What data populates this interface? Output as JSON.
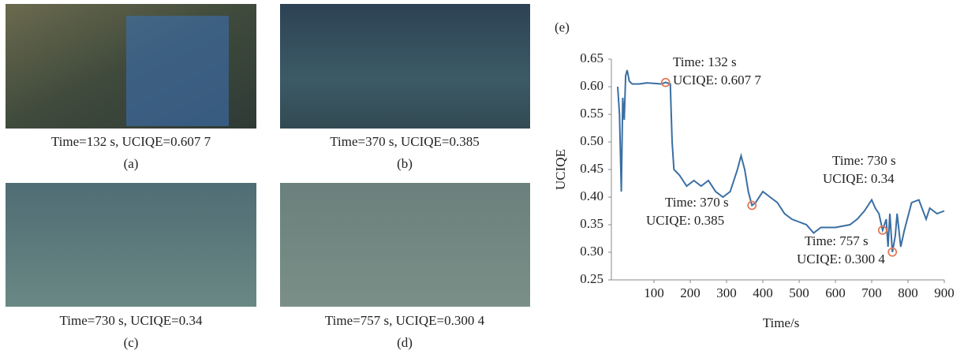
{
  "panels": [
    {
      "caption": "Time=132 s, UCIQE=0.607 7",
      "label": "(a)"
    },
    {
      "caption": "Time=370 s, UCIQE=0.385",
      "label": "(b)"
    },
    {
      "caption": "Time=730 s, UCIQE=0.34",
      "label": "(c)"
    },
    {
      "caption": "Time=757 s, UCIQE=0.300 4",
      "label": "(d)"
    }
  ],
  "chart_data": {
    "type": "line",
    "label": "(e)",
    "xlabel": "Time/s",
    "ylabel": "UCIQE",
    "xlim": [
      0,
      900
    ],
    "ylim": [
      0.25,
      0.65
    ],
    "xticks": [
      100,
      200,
      300,
      400,
      500,
      600,
      700,
      800,
      900
    ],
    "yticks": [
      0.25,
      {
        "value": 0.3,
        "label": "0.30"
      },
      0.35,
      {
        "value": 0.4,
        "label": "0.40"
      },
      0.45,
      {
        "value": 0.5,
        "label": "0.50"
      },
      0.55,
      {
        "value": 0.6,
        "label": "0.60"
      },
      0.65
    ],
    "series": [
      {
        "color": "#3a6fa3",
        "x": [
          0,
          5,
          10,
          14,
          18,
          22,
          26,
          32,
          40,
          60,
          80,
          100,
          120,
          132,
          145,
          150,
          155,
          170,
          190,
          210,
          230,
          250,
          270,
          290,
          310,
          330,
          340,
          350,
          360,
          370,
          380,
          400,
          420,
          440,
          460,
          480,
          500,
          520,
          540,
          560,
          600,
          640,
          660,
          680,
          700,
          710,
          720,
          730,
          740,
          745,
          750,
          757,
          765,
          770,
          780,
          790,
          810,
          830,
          850,
          860,
          880,
          900
        ],
        "values": [
          0.6,
          0.55,
          0.41,
          0.58,
          0.54,
          0.62,
          0.63,
          0.61,
          0.605,
          0.605,
          0.607,
          0.606,
          0.605,
          0.6077,
          0.605,
          0.5,
          0.45,
          0.44,
          0.42,
          0.43,
          0.42,
          0.43,
          0.41,
          0.4,
          0.41,
          0.45,
          0.475,
          0.45,
          0.41,
          0.385,
          0.39,
          0.41,
          0.4,
          0.39,
          0.37,
          0.36,
          0.355,
          0.35,
          0.335,
          0.345,
          0.345,
          0.35,
          0.36,
          0.375,
          0.395,
          0.38,
          0.37,
          0.34,
          0.36,
          0.31,
          0.37,
          0.3004,
          0.33,
          0.37,
          0.31,
          0.34,
          0.39,
          0.395,
          0.36,
          0.38,
          0.37,
          0.375
        ]
      }
    ],
    "marker_color": "#e07b5a",
    "annotations": [
      {
        "x": 132,
        "y": 0.6077,
        "lines": [
          "Time: 132 s",
          "UCIQE: 0.607 7"
        ]
      },
      {
        "x": 370,
        "y": 0.385,
        "lines": [
          "Time: 370 s",
          "UCIQE: 0.385"
        ]
      },
      {
        "x": 730,
        "y": 0.34,
        "lines": [
          "Time: 730 s",
          "UCIQE: 0.34"
        ]
      },
      {
        "x": 757,
        "y": 0.3004,
        "lines": [
          "Time: 757 s",
          "UCIQE: 0.300 4"
        ]
      }
    ]
  }
}
